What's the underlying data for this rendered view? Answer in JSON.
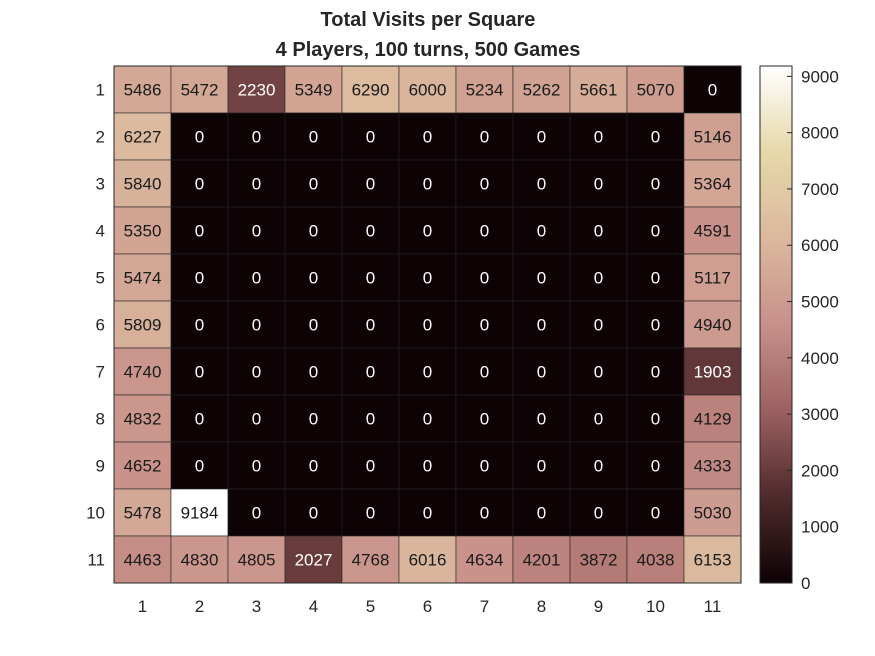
{
  "chart_data": {
    "type": "heatmap",
    "title": "Total Visits per Square",
    "subtitle": "4 Players, 100 turns, 500 Games",
    "xlabel": "",
    "ylabel": "",
    "x_categories": [
      "1",
      "2",
      "3",
      "4",
      "5",
      "6",
      "7",
      "8",
      "9",
      "10",
      "11"
    ],
    "y_categories": [
      "1",
      "2",
      "3",
      "4",
      "5",
      "6",
      "7",
      "8",
      "9",
      "10",
      "11"
    ],
    "values": [
      [
        5486,
        5472,
        2230,
        5349,
        6290,
        6000,
        5234,
        5262,
        5661,
        5070,
        0
      ],
      [
        6227,
        0,
        0,
        0,
        0,
        0,
        0,
        0,
        0,
        0,
        5146
      ],
      [
        5840,
        0,
        0,
        0,
        0,
        0,
        0,
        0,
        0,
        0,
        5364
      ],
      [
        5350,
        0,
        0,
        0,
        0,
        0,
        0,
        0,
        0,
        0,
        4591
      ],
      [
        5474,
        0,
        0,
        0,
        0,
        0,
        0,
        0,
        0,
        0,
        5117
      ],
      [
        5809,
        0,
        0,
        0,
        0,
        0,
        0,
        0,
        0,
        0,
        4940
      ],
      [
        4740,
        0,
        0,
        0,
        0,
        0,
        0,
        0,
        0,
        0,
        1903
      ],
      [
        4832,
        0,
        0,
        0,
        0,
        0,
        0,
        0,
        0,
        0,
        4129
      ],
      [
        4652,
        0,
        0,
        0,
        0,
        0,
        0,
        0,
        0,
        0,
        4333
      ],
      [
        5478,
        9184,
        0,
        0,
        0,
        0,
        0,
        0,
        0,
        0,
        5030
      ],
      [
        4463,
        4830,
        4805,
        2027,
        4768,
        6016,
        4634,
        4201,
        3872,
        4038,
        6153
      ]
    ],
    "colorbar": {
      "range": [
        0,
        9184
      ],
      "ticks": [
        "0",
        "1000",
        "2000",
        "3000",
        "4000",
        "5000",
        "6000",
        "7000",
        "8000",
        "9000"
      ],
      "tick_values": [
        0,
        1000,
        2000,
        3000,
        4000,
        5000,
        6000,
        7000,
        8000,
        9000
      ],
      "colormap_stops": [
        "#0d0204",
        "#4f2a2c",
        "#9c6060",
        "#c8918a",
        "#dbb89e",
        "#e6d8a8",
        "#ffffff"
      ]
    },
    "grid": true
  }
}
